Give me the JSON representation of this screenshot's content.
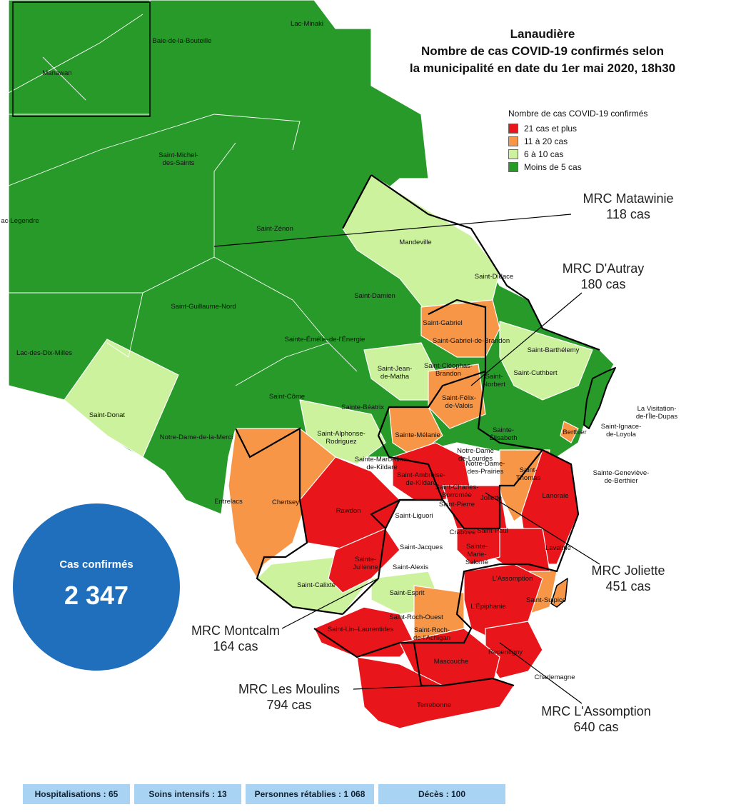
{
  "title": {
    "line1": "Lanaudière",
    "line2": "Nombre de cas COVID-19 confirmés selon",
    "line3": "la municipalité en date du 1er mai 2020, 18h30"
  },
  "legend": {
    "heading": "Nombre de cas COVID-19 confirmés",
    "items": [
      {
        "label": "21 cas et plus",
        "color": "#e8161b"
      },
      {
        "label": "11 à 20 cas",
        "color": "#f79646"
      },
      {
        "label": "6 à 10 cas",
        "color": "#ccf29e"
      },
      {
        "label": "Moins de 5 cas",
        "color": "#279a2a"
      }
    ]
  },
  "mrc": [
    {
      "name": "MRC Matawinie",
      "cases": "118 cas"
    },
    {
      "name": "MRC D'Autray",
      "cases": "180 cas"
    },
    {
      "name": "MRC Joliette",
      "cases": "451 cas"
    },
    {
      "name": "MRC Montcalm",
      "cases": "164 cas"
    },
    {
      "name": "MRC Les Moulins",
      "cases": "794 cas"
    },
    {
      "name": "MRC L'Assomption",
      "cases": "640 cas"
    }
  ],
  "total": {
    "label": "Cas confirmés",
    "value": "2 347"
  },
  "stats": [
    "Hospitalisations : 65",
    "Soins intensifs : 13",
    "Personnes rétablies : 1 068",
    "Décès : 100"
  ],
  "municipalities": [
    "Lac-Minaki",
    "Baie-de-la-Bouteille",
    "Manawan",
    "Saint-Michel-\ndes-Saints",
    "ac-Legendre",
    "Saint-Zénon",
    "Mandeville",
    "Saint-Didace",
    "Saint-Guillaume-Nord",
    "Saint-Damien",
    "Saint-Gabriel",
    "Saint-Gabriel-de-Brandon",
    "Sainte-Émélie-de-l'Énergie",
    "Lac-des-Dix-Milles",
    "Saint-Jean-\nde-Matha",
    "Saint-Cléophas-\nBrandon",
    "Saint-\nNorbert",
    "Saint-Barthélemy",
    "Saint-Cuthbert",
    "Saint-Donat",
    "Saint-Côme",
    "Saint-Félix-\nde-Valois",
    "Sainte-Béatrix",
    "La Visitation-\nde-l'Île-Dupas",
    "Saint-Alphonse-\nRodriguez",
    "Sainte-Mélanie",
    "Sainte-\nÉlisabeth",
    "Berthier",
    "Saint-Ignace-\nde-Loyola",
    "Notre-Dame-de-la-Merci",
    "Notre-Dame\nde-Lourdes",
    "Sainte-Marcelline-\nde-Kildare",
    "Saint-Ambroise-\nde-Kildare",
    "Notre-Dame-\ndes-Prairies",
    "Saint-\nThomas",
    "Sainte-Geneviève-\nde-Berthier",
    "Saint-Charles-\nBorromée",
    "Joliette",
    "Lanoraie",
    "Entrelacs",
    "Chertsey",
    "Rawdon",
    "Saint-Pierre",
    "Saint-Liguori",
    "Crabtree",
    "Saint-Paul",
    "Saint-Jacques",
    "Sainte-\nMarie-\nSalomé",
    "Lavaltrie",
    "Sainte-\nJulienne",
    "Saint-Alexis",
    "L'Assomption",
    "Saint-Calixte",
    "Saint-Esprit",
    "Saint-Sulpice",
    "L'Épiphanie",
    "Saint-Roch-Ouest",
    "Saint-Lin–Laurentides",
    "Saint-Roch-\nde-l'Achigan",
    "Repentigny",
    "Mascouche",
    "Charlemagne",
    "Terrebonne"
  ]
}
